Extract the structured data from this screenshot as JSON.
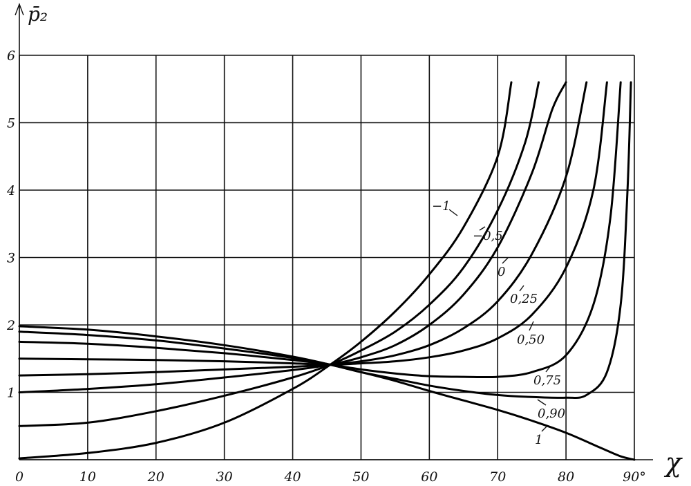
{
  "chart_data": {
    "type": "line",
    "title": "",
    "xlabel": "χ",
    "ylabel": "p̄₂",
    "x_unit": "°",
    "xlim": [
      0,
      90
    ],
    "ylim": [
      0,
      6
    ],
    "grid": true,
    "x_ticks": [
      "0",
      "10",
      "20",
      "30",
      "40",
      "50",
      "60",
      "70",
      "80",
      "90°"
    ],
    "y_ticks": [
      "1",
      "2",
      "3",
      "4",
      "5",
      "6"
    ],
    "series": [
      {
        "name": "-1",
        "label": "−1",
        "points": [
          [
            0,
            0.02
          ],
          [
            10,
            0.1
          ],
          [
            20,
            0.25
          ],
          [
            30,
            0.55
          ],
          [
            40,
            1.05
          ],
          [
            45.5,
            1.41
          ],
          [
            50,
            1.75
          ],
          [
            55,
            2.2
          ],
          [
            60,
            2.75
          ],
          [
            65,
            3.45
          ],
          [
            70,
            4.5
          ],
          [
            72,
            5.6
          ]
        ]
      },
      {
        "name": "-0.5",
        "label": "−0,5",
        "points": [
          [
            0,
            0.5
          ],
          [
            10,
            0.55
          ],
          [
            20,
            0.72
          ],
          [
            30,
            0.95
          ],
          [
            40,
            1.22
          ],
          [
            45.5,
            1.41
          ],
          [
            50,
            1.62
          ],
          [
            55,
            1.9
          ],
          [
            60,
            2.3
          ],
          [
            65,
            2.85
          ],
          [
            70,
            3.7
          ],
          [
            74,
            4.7
          ],
          [
            76,
            5.6
          ]
        ]
      },
      {
        "name": "0",
        "label": "0",
        "points": [
          [
            0,
            1.0
          ],
          [
            10,
            1.05
          ],
          [
            20,
            1.12
          ],
          [
            30,
            1.22
          ],
          [
            40,
            1.33
          ],
          [
            45.5,
            1.41
          ],
          [
            50,
            1.52
          ],
          [
            55,
            1.7
          ],
          [
            60,
            2.0
          ],
          [
            65,
            2.45
          ],
          [
            70,
            3.15
          ],
          [
            75,
            4.25
          ],
          [
            78,
            5.2
          ],
          [
            80,
            5.6
          ]
        ]
      },
      {
        "name": "0.25",
        "label": "0,25",
        "points": [
          [
            0,
            1.25
          ],
          [
            10,
            1.27
          ],
          [
            20,
            1.3
          ],
          [
            30,
            1.34
          ],
          [
            40,
            1.38
          ],
          [
            45.5,
            1.41
          ],
          [
            50,
            1.46
          ],
          [
            55,
            1.55
          ],
          [
            60,
            1.7
          ],
          [
            65,
            1.95
          ],
          [
            70,
            2.35
          ],
          [
            75,
            3.05
          ],
          [
            80,
            4.2
          ],
          [
            83,
            5.6
          ]
        ]
      },
      {
        "name": "0.50",
        "label": "0,50",
        "points": [
          [
            0,
            1.5
          ],
          [
            10,
            1.49
          ],
          [
            20,
            1.48
          ],
          [
            30,
            1.46
          ],
          [
            40,
            1.43
          ],
          [
            45.5,
            1.41
          ],
          [
            50,
            1.43
          ],
          [
            55,
            1.46
          ],
          [
            60,
            1.52
          ],
          [
            65,
            1.62
          ],
          [
            70,
            1.8
          ],
          [
            75,
            2.15
          ],
          [
            80,
            2.85
          ],
          [
            84,
            4.0
          ],
          [
            86,
            5.6
          ]
        ]
      },
      {
        "name": "0.75",
        "label": "0,75",
        "points": [
          [
            0,
            1.75
          ],
          [
            10,
            1.72
          ],
          [
            20,
            1.66
          ],
          [
            30,
            1.58
          ],
          [
            40,
            1.48
          ],
          [
            45.5,
            1.41
          ],
          [
            50,
            1.34
          ],
          [
            55,
            1.28
          ],
          [
            60,
            1.24
          ],
          [
            65,
            1.23
          ],
          [
            70,
            1.23
          ],
          [
            75,
            1.3
          ],
          [
            80,
            1.55
          ],
          [
            84,
            2.3
          ],
          [
            86.5,
            3.6
          ],
          [
            88,
            5.6
          ]
        ]
      },
      {
        "name": "0.90",
        "label": "0,90",
        "points": [
          [
            0,
            1.9
          ],
          [
            10,
            1.85
          ],
          [
            20,
            1.77
          ],
          [
            30,
            1.65
          ],
          [
            40,
            1.51
          ],
          [
            45.5,
            1.41
          ],
          [
            50,
            1.3
          ],
          [
            55,
            1.2
          ],
          [
            60,
            1.1
          ],
          [
            65,
            1.02
          ],
          [
            70,
            0.96
          ],
          [
            75,
            0.93
          ],
          [
            80,
            0.92
          ],
          [
            83,
            0.96
          ],
          [
            86,
            1.3
          ],
          [
            88,
            2.3
          ],
          [
            89,
            4.0
          ],
          [
            89.5,
            5.6
          ]
        ]
      },
      {
        "name": "1",
        "label": "1",
        "points": [
          [
            0,
            1.98
          ],
          [
            10,
            1.93
          ],
          [
            20,
            1.83
          ],
          [
            30,
            1.7
          ],
          [
            40,
            1.53
          ],
          [
            45.5,
            1.41
          ],
          [
            50,
            1.3
          ],
          [
            55,
            1.17
          ],
          [
            60,
            1.02
          ],
          [
            65,
            0.88
          ],
          [
            70,
            0.74
          ],
          [
            75,
            0.58
          ],
          [
            80,
            0.4
          ],
          [
            85,
            0.18
          ],
          [
            88,
            0.05
          ],
          [
            90,
            0.0
          ]
        ]
      }
    ]
  }
}
